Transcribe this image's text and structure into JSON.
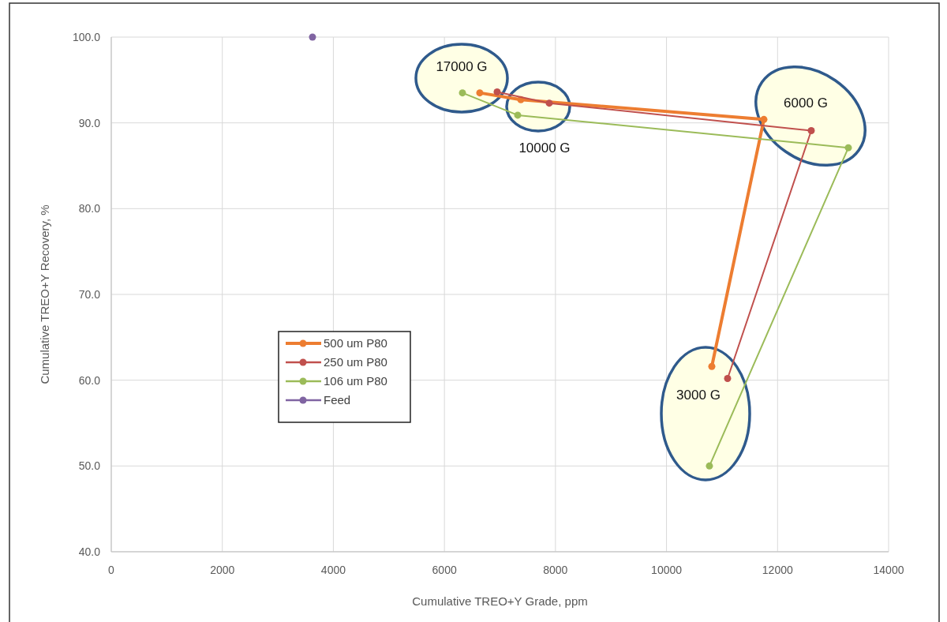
{
  "chart_data": {
    "type": "line",
    "xlabel": "Cumulative TREO+Y Grade, ppm",
    "ylabel": "Cumulative TREO+Y Recovery, %",
    "xlim": [
      0,
      14000
    ],
    "xticks": [
      0,
      2000,
      4000,
      6000,
      8000,
      10000,
      12000,
      14000
    ],
    "ylim": [
      40,
      100
    ],
    "yticks": [
      {
        "value": 40,
        "label": "40.0"
      },
      {
        "value": 50,
        "label": "50.0"
      },
      {
        "value": 60,
        "label": "60.0"
      },
      {
        "value": 70,
        "label": "70.0"
      },
      {
        "value": 80,
        "label": "80.0"
      },
      {
        "value": 90,
        "label": "90.0"
      },
      {
        "value": 100,
        "label": "100.0"
      }
    ],
    "grid": true,
    "legend": "left",
    "marker": "circle",
    "line_style": "solid",
    "series": [
      {
        "name": "500 um P80",
        "color": "#ed7d31",
        "x": [
          10816,
          11754,
          7376,
          6637
        ],
        "values": [
          61.6,
          90.4,
          92.7,
          93.5
        ]
      },
      {
        "name": "250 um P80",
        "color": "#c0504d",
        "x": [
          11100,
          12607,
          7888,
          6950
        ],
        "values": [
          60.2,
          89.1,
          92.3,
          93.6
        ]
      },
      {
        "name": "106 um P80",
        "color": "#9bbb59",
        "x": [
          10773,
          13275,
          7320,
          6325
        ],
        "values": [
          50.0,
          87.1,
          90.9,
          93.5
        ]
      },
      {
        "name": "Feed",
        "color": "#8064a2",
        "type": "scatter",
        "x": [
          3624
        ],
        "values": [
          100
        ]
      }
    ],
    "annotations": [
      "17000 G",
      "10000 G",
      "6000 G",
      "3000 G"
    ]
  }
}
